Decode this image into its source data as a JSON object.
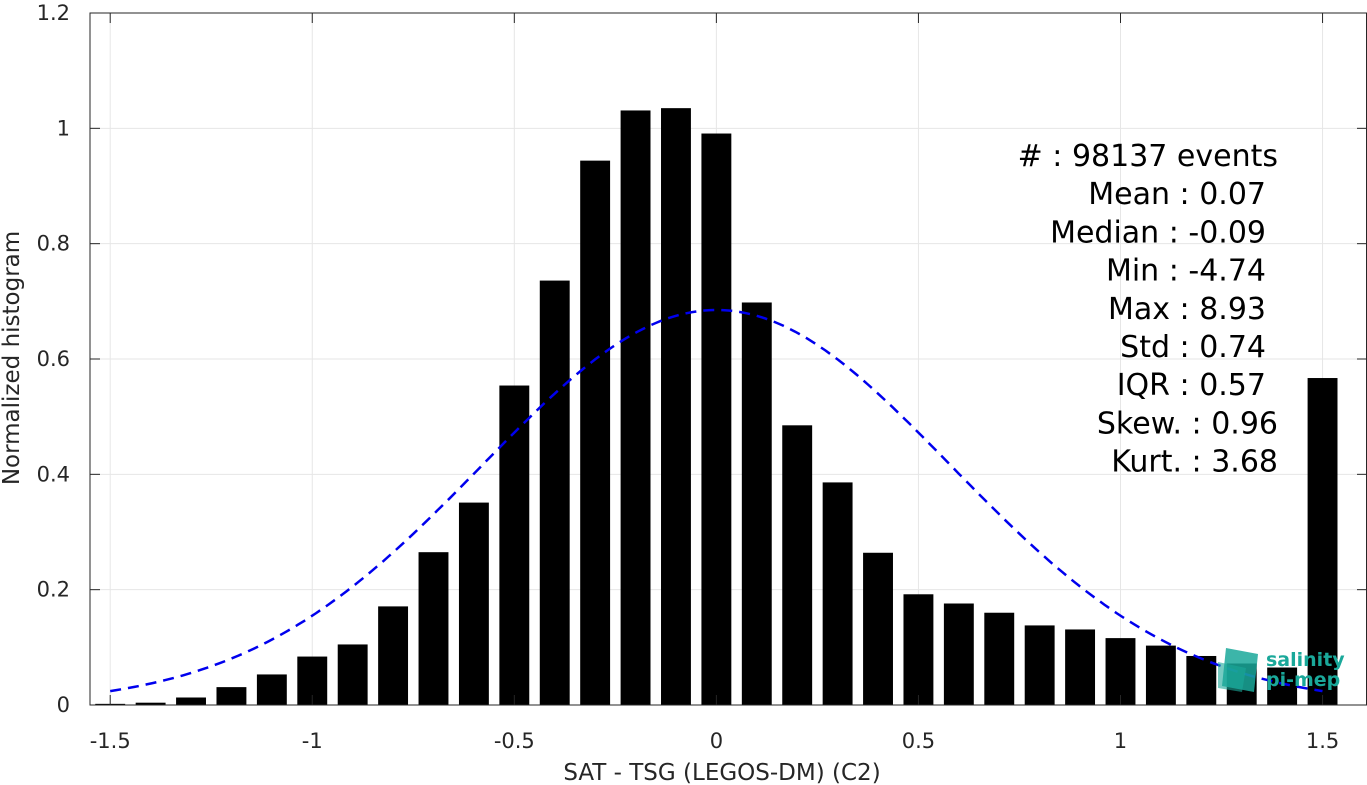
{
  "chart_data": {
    "type": "bar",
    "xlabel": "SAT - TSG (LEGOS-DM) (C2)",
    "ylabel": "Normalized histogram",
    "xlim": [
      -1.55,
      1.61
    ],
    "ylim": [
      0,
      1.2
    ],
    "x_ticks": [
      -1.5,
      -1,
      -0.5,
      0,
      0.5,
      1,
      1.5
    ],
    "x_tick_labels": [
      "-1.5",
      "-1",
      "-0.5",
      "0",
      "0.5",
      "1",
      "1.5"
    ],
    "y_ticks": [
      0,
      0.2,
      0.4,
      0.6,
      0.8,
      1,
      1.2
    ],
    "y_tick_labels": [
      "0",
      "0.2",
      "0.4",
      "0.6",
      "0.8",
      "1",
      "1.2"
    ],
    "grid": true,
    "bar_color": "#000000",
    "bins": {
      "x": [
        -1.5,
        -1.4,
        -1.3,
        -1.2,
        -1.1,
        -1.0,
        -0.9,
        -0.8,
        -0.7,
        -0.6,
        -0.5,
        -0.4,
        -0.3,
        -0.2,
        -0.1,
        0.0,
        0.1,
        0.2,
        0.3,
        0.4,
        0.5,
        0.6,
        0.7,
        0.8,
        0.9,
        1.0,
        1.1,
        1.2,
        1.3,
        1.4,
        1.5
      ],
      "values": [
        0.002,
        0.004,
        0.013,
        0.031,
        0.053,
        0.084,
        0.105,
        0.171,
        0.265,
        0.351,
        0.554,
        0.736,
        0.944,
        1.031,
        1.035,
        0.991,
        0.698,
        0.485,
        0.386,
        0.264,
        0.192,
        0.176,
        0.16,
        0.138,
        0.131,
        0.116,
        0.103,
        0.085,
        0.072,
        0.065,
        0.567
      ]
    },
    "fit_curve": {
      "type": "gaussian",
      "mean": 0.0,
      "std": 0.58,
      "peak": 0.685,
      "x_range": [
        -1.5,
        1.5
      ],
      "color": "#0000ee",
      "style": "dashed"
    },
    "stats": [
      {
        "label": "#  : 98137 events"
      },
      {
        "label": "Mean : 0.07"
      },
      {
        "label": "Median : -0.09"
      },
      {
        "label": "Min : -4.74"
      },
      {
        "label": "Max : 8.93"
      },
      {
        "label": "Std : 0.74"
      },
      {
        "label": "IQR : 0.57"
      },
      {
        "label": "Skew. : 0.96"
      },
      {
        "label": "Kurt. : 3.68"
      }
    ]
  },
  "logo": {
    "line1": "salinity",
    "line2": "pi-mep",
    "text_color": "#1aa89a",
    "cube_color": "#1aa89a"
  }
}
